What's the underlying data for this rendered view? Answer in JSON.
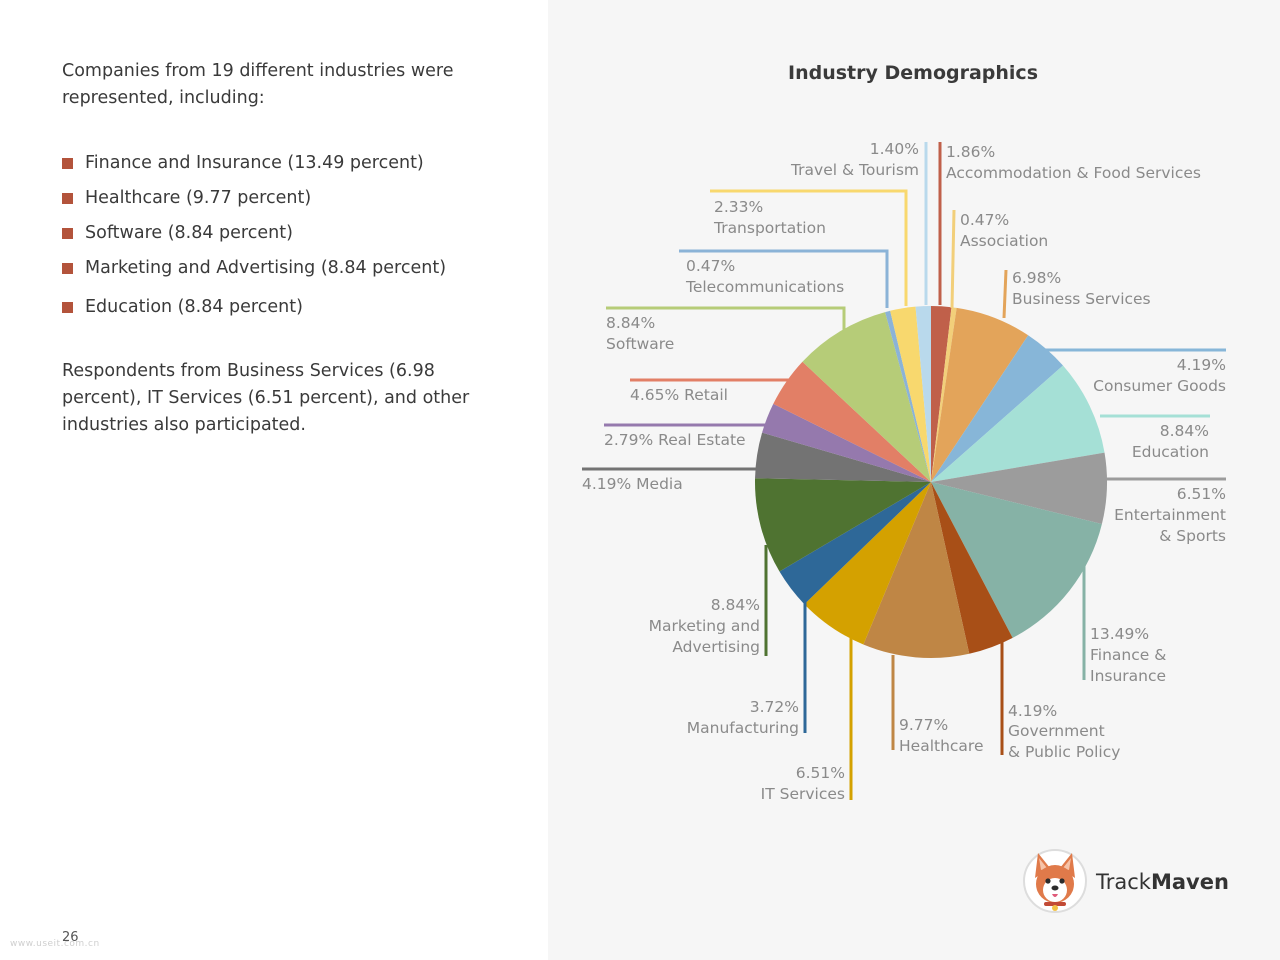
{
  "left": {
    "intro": "Companies from 19 different industries were represented, including:",
    "bullets": [
      "Finance and Insurance (13.49 percent)",
      "Healthcare (9.77 percent)",
      "Software (8.84 percent)",
      "Marketing and Advertising (8.84 percent)",
      "Education (8.84 percent)"
    ],
    "outro": "Respondents from Business Services (6.98 percent), IT Services (6.51 percent), and other industries also participated.",
    "page_number": "26",
    "watermark": "www.useit.com.cn",
    "bullet_color": "#b3533b"
  },
  "brand": {
    "name_regular": "Track",
    "name_bold": "Maven",
    "logo_icon": "corgi-logo-icon"
  },
  "chart_data": {
    "type": "pie",
    "title": "Industry Demographics",
    "start_angle_deg": 0,
    "direction": "clockwise",
    "slices": [
      {
        "pct": "1.86%",
        "name": "Accommodation & Food Services",
        "value": 1.86,
        "color": "#c0604a"
      },
      {
        "pct": "0.47%",
        "name": "Association",
        "value": 0.47,
        "color": "#f2cf7a"
      },
      {
        "pct": "6.98%",
        "name": "Business Services",
        "value": 6.98,
        "color": "#e3a45a"
      },
      {
        "pct": "4.19%",
        "name": "Consumer Goods",
        "value": 4.19,
        "color": "#87b6d8"
      },
      {
        "pct": "8.84%",
        "name": "Education",
        "value": 8.84,
        "color": "#a5e0d6"
      },
      {
        "pct": "6.51%",
        "name": "Entertainment & Sports",
        "value": 6.51,
        "color": "#9c9c9c"
      },
      {
        "pct": "13.49%",
        "name": "Finance & Insurance",
        "value": 13.49,
        "color": "#86b2a6"
      },
      {
        "pct": "4.19%",
        "name": "Government & Public Policy",
        "value": 4.19,
        "color": "#a84f17"
      },
      {
        "pct": "9.77%",
        "name": "Healthcare",
        "value": 9.77,
        "color": "#bf8645"
      },
      {
        "pct": "6.51%",
        "name": "IT Services",
        "value": 6.51,
        "color": "#d4a100"
      },
      {
        "pct": "3.72%",
        "name": "Manufacturing",
        "value": 3.72,
        "color": "#2e6898"
      },
      {
        "pct": "8.84%",
        "name": "Marketing and Advertising",
        "value": 8.84,
        "color": "#4f7331"
      },
      {
        "pct": "4.19%",
        "name": "Media",
        "value": 4.19,
        "color": "#737373"
      },
      {
        "pct": "2.79%",
        "name": "Real Estate",
        "value": 2.79,
        "color": "#9579ad"
      },
      {
        "pct": "4.65%",
        "name": "Retail",
        "value": 4.65,
        "color": "#e27f66"
      },
      {
        "pct": "8.84%",
        "name": "Software",
        "value": 8.84,
        "color": "#b6cc78"
      },
      {
        "pct": "0.47%",
        "name": "Telecommunications",
        "value": 0.47,
        "color": "#8bb3d7"
      },
      {
        "pct": "2.33%",
        "name": "Transportation",
        "value": 2.33,
        "color": "#f8d86e"
      },
      {
        "pct": "1.40%",
        "name": "Travel & Tourism",
        "value": 1.4,
        "color": "#b9d9ec"
      }
    ]
  }
}
